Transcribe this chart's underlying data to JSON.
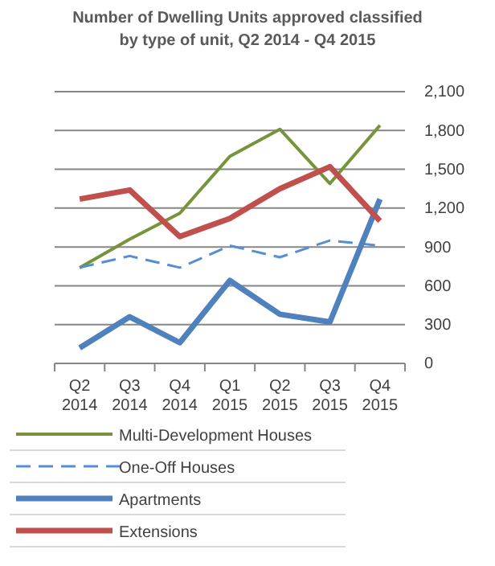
{
  "chart_data": {
    "type": "line",
    "title": "Number of Dwelling Units approved classified by type of unit,  Q2 2014 - Q4 2015",
    "categories": [
      "Q2\n2014",
      "Q3\n2014",
      "Q4\n2014",
      "Q1\n2015",
      "Q2\n2015",
      "Q3\n2015",
      "Q4\n2015"
    ],
    "series": [
      {
        "name": "Multi-Development Houses",
        "color": "#77933c",
        "values": [
          740,
          960,
          1160,
          1600,
          1810,
          1390,
          1840
        ]
      },
      {
        "name": "One-Off Houses",
        "color": "#558ed5",
        "line_style": "dashed",
        "values": [
          740,
          830,
          740,
          910,
          820,
          950,
          910
        ]
      },
      {
        "name": "Apartments",
        "color": "#4f81bd",
        "values": [
          120,
          360,
          160,
          640,
          380,
          320,
          1270
        ]
      },
      {
        "name": "Extensions",
        "color": "#c0504d",
        "values": [
          1270,
          1340,
          980,
          1120,
          1350,
          1520,
          1100
        ]
      }
    ],
    "ylim": [
      0,
      2100
    ],
    "yticks": [
      {
        "value": 0,
        "label": "0"
      },
      {
        "value": 300,
        "label": "300"
      },
      {
        "value": 600,
        "label": "600"
      },
      {
        "value": 900,
        "label": "900"
      },
      {
        "value": 1200,
        "label": "1,200"
      },
      {
        "value": 1500,
        "label": "1,500"
      },
      {
        "value": 1800,
        "label": "1,800"
      },
      {
        "value": 2100,
        "label": "2,100"
      }
    ],
    "grid": "y",
    "legend": "bottom",
    "line_style": "solid",
    "marker": "none"
  }
}
